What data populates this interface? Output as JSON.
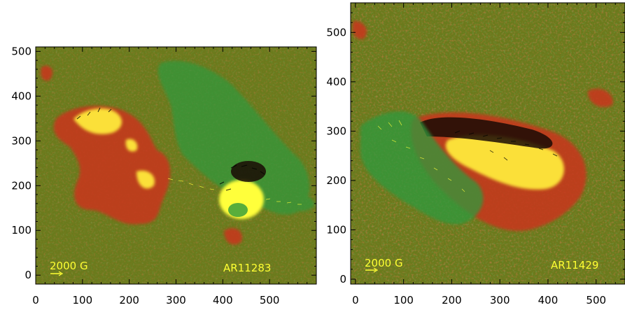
{
  "panels": [
    {
      "id": "left",
      "region_label": "AR11283",
      "scale_label": "2000 G",
      "x_ticks": [
        0,
        100,
        200,
        300,
        400,
        500
      ],
      "y_ticks": [
        0,
        100,
        200,
        300,
        400,
        500
      ],
      "x_range": [
        0,
        600
      ],
      "y_range": [
        -20,
        510
      ]
    },
    {
      "id": "right",
      "region_label": "AR11429",
      "scale_label": "2000 G",
      "x_ticks": [
        0,
        100,
        200,
        300,
        400,
        500
      ],
      "y_ticks": [
        0,
        100,
        200,
        300,
        400,
        500
      ],
      "x_range": [
        -10,
        560
      ],
      "y_range": [
        -10,
        560
      ]
    }
  ],
  "colors": {
    "background_field": "#6b7a1c",
    "positive_polarity": "#d8331a",
    "strong_positive": "#ffff3a",
    "negative_polarity": "#2e9a3c",
    "strong_negative": "#1aa8a8",
    "vector_arrows": "#000000",
    "annotation_text": "#ffff33"
  }
}
